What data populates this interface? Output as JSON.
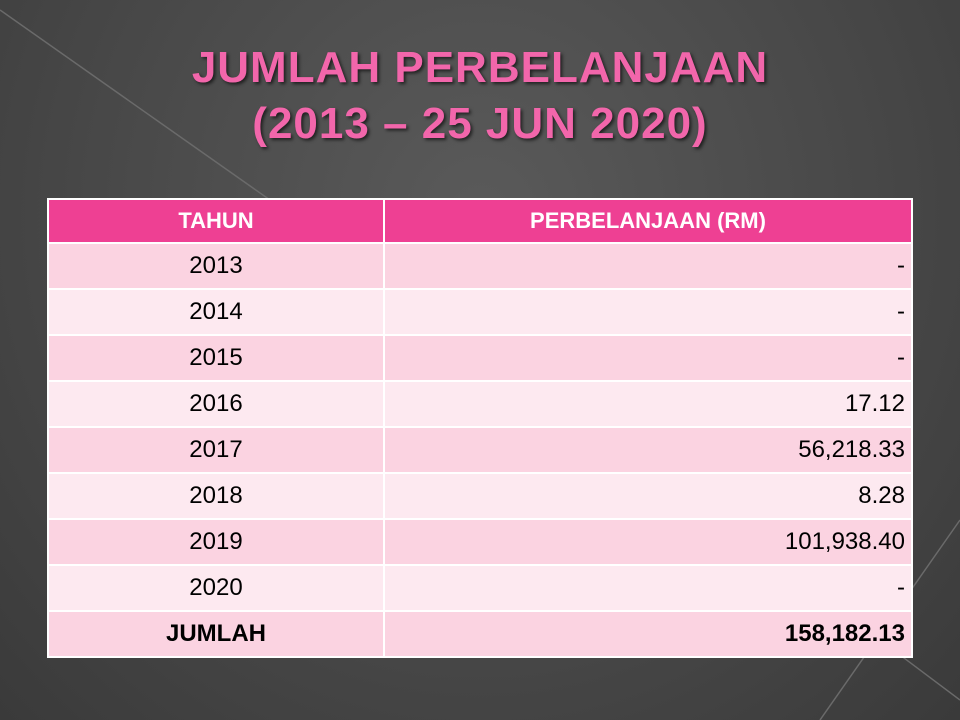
{
  "title": [
    "JUMLAH PERBELANJAAN",
    "(2013 – 25 JUN 2020)"
  ],
  "table": {
    "header": [
      "TAHUN",
      "PERBELANJAAN (RM)"
    ],
    "rows": [
      [
        "2013",
        "-"
      ],
      [
        "2014",
        "-"
      ],
      [
        "2015",
        "-"
      ],
      [
        "2016",
        "17.12"
      ],
      [
        "2017",
        "56,218.33"
      ],
      [
        "2018",
        "8.28"
      ],
      [
        "2019",
        "101,938.40"
      ],
      [
        "2020",
        "-"
      ]
    ],
    "total": [
      "JUMLAH",
      "158,182.13"
    ]
  }
}
